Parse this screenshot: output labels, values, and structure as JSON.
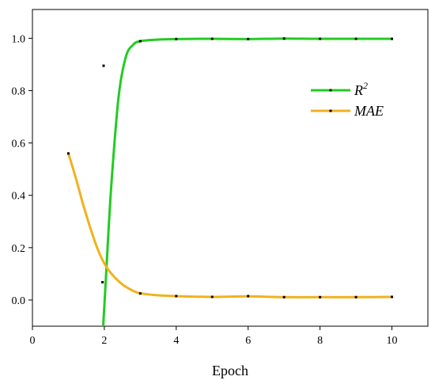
{
  "chart_data": {
    "type": "line",
    "title": "",
    "xlabel": "Epoch",
    "ylabel": "",
    "xlim": [
      0,
      11
    ],
    "ylim": [
      -0.1,
      1.11
    ],
    "xticks": [
      0,
      2,
      4,
      6,
      8,
      10
    ],
    "yticks": [
      0.0,
      0.2,
      0.4,
      0.6,
      0.8,
      1.0
    ],
    "xtick_labels": [
      "0",
      "2",
      "4",
      "6",
      "8",
      "10"
    ],
    "ytick_labels": [
      "0.0",
      "0.2",
      "0.4",
      "0.6",
      "0.8",
      "1.0"
    ],
    "grid": false,
    "legend_position": "upper-right",
    "series": [
      {
        "name": "R",
        "name_superscript": "2",
        "color": "#22cc22",
        "points": [
          {
            "x": 1.95,
            "y": 0.068
          },
          {
            "x": 1.98,
            "y": 0.895
          },
          {
            "x": 3,
            "y": 0.989
          },
          {
            "x": 4,
            "y": 0.997
          },
          {
            "x": 5,
            "y": 0.998
          },
          {
            "x": 6,
            "y": 0.997
          },
          {
            "x": 7,
            "y": 0.999
          },
          {
            "x": 8,
            "y": 0.998
          },
          {
            "x": 9,
            "y": 0.998
          },
          {
            "x": 10,
            "y": 0.998
          }
        ],
        "curve": [
          {
            "x": 1.97,
            "y": -0.1
          },
          {
            "x": 2.05,
            "y": 0.1
          },
          {
            "x": 2.2,
            "y": 0.45
          },
          {
            "x": 2.4,
            "y": 0.78
          },
          {
            "x": 2.6,
            "y": 0.93
          },
          {
            "x": 2.8,
            "y": 0.975
          },
          {
            "x": 3.0,
            "y": 0.989
          },
          {
            "x": 3.5,
            "y": 0.995
          },
          {
            "x": 4,
            "y": 0.997
          },
          {
            "x": 5,
            "y": 0.998
          },
          {
            "x": 6,
            "y": 0.997
          },
          {
            "x": 7,
            "y": 0.999
          },
          {
            "x": 8,
            "y": 0.998
          },
          {
            "x": 9,
            "y": 0.998
          },
          {
            "x": 10,
            "y": 0.998
          }
        ]
      },
      {
        "name": "MAE",
        "color": "#f0b21e",
        "points": [
          {
            "x": 1,
            "y": 0.56
          },
          {
            "x": 3,
            "y": 0.025
          },
          {
            "x": 4,
            "y": 0.015
          },
          {
            "x": 5,
            "y": 0.012
          },
          {
            "x": 6,
            "y": 0.015
          },
          {
            "x": 7,
            "y": 0.011
          },
          {
            "x": 8,
            "y": 0.011
          },
          {
            "x": 9,
            "y": 0.011
          },
          {
            "x": 10,
            "y": 0.012
          }
        ],
        "curve": [
          {
            "x": 1.0,
            "y": 0.56
          },
          {
            "x": 1.2,
            "y": 0.47
          },
          {
            "x": 1.4,
            "y": 0.37
          },
          {
            "x": 1.6,
            "y": 0.28
          },
          {
            "x": 1.8,
            "y": 0.2
          },
          {
            "x": 2.0,
            "y": 0.14
          },
          {
            "x": 2.2,
            "y": 0.1
          },
          {
            "x": 2.5,
            "y": 0.06
          },
          {
            "x": 2.8,
            "y": 0.035
          },
          {
            "x": 3.0,
            "y": 0.026
          },
          {
            "x": 3.5,
            "y": 0.018
          },
          {
            "x": 4,
            "y": 0.015
          },
          {
            "x": 5,
            "y": 0.012
          },
          {
            "x": 6,
            "y": 0.014
          },
          {
            "x": 7,
            "y": 0.011
          },
          {
            "x": 8,
            "y": 0.011
          },
          {
            "x": 9,
            "y": 0.011
          },
          {
            "x": 10,
            "y": 0.012
          }
        ]
      }
    ]
  }
}
